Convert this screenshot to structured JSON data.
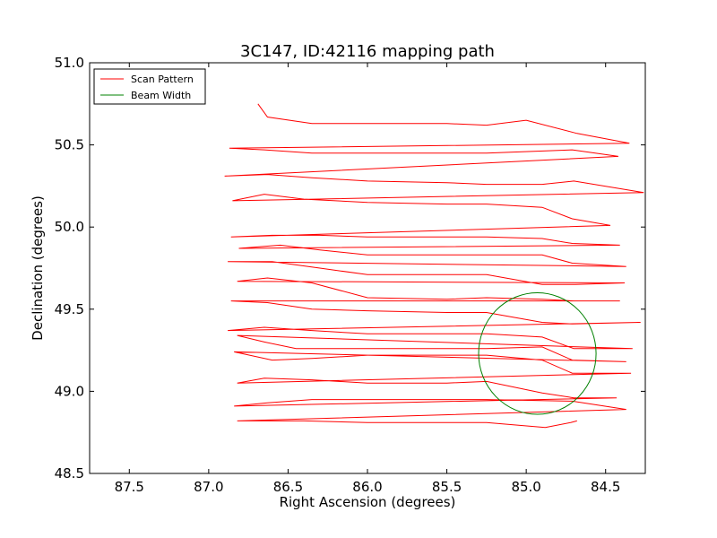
{
  "chart_data": {
    "type": "line",
    "title": "3C147, ID:42116 mapping path",
    "xlabel": "Right Ascension (degrees)",
    "ylabel": "Declination (degrees)",
    "xlim": [
      87.75,
      84.25
    ],
    "ylim": [
      48.5,
      51.0
    ],
    "x_inverted": true,
    "xticks": [
      "87.5",
      "87.0",
      "86.5",
      "86.0",
      "85.5",
      "85.0",
      "84.5"
    ],
    "yticks": [
      "48.5",
      "49.0",
      "49.5",
      "50.0",
      "50.5",
      "51.0"
    ],
    "grid": false,
    "legend_position": "top-left",
    "series": [
      {
        "name": "Scan Pattern",
        "color": "#ff0000",
        "x": [
          84.68,
          84.72,
          84.88,
          85.25,
          85.5,
          86.0,
          86.4,
          86.6,
          86.82,
          84.37,
          84.71,
          85.25,
          85.5,
          86.0,
          86.35,
          86.63,
          86.84,
          84.43,
          84.7,
          84.9,
          85.25,
          85.5,
          86.0,
          86.35,
          86.65,
          86.82,
          84.34,
          84.71,
          84.9,
          85.25,
          85.5,
          86.0,
          86.35,
          86.6,
          86.84,
          84.37,
          84.71,
          84.9,
          85.25,
          85.5,
          86.0,
          86.45,
          86.65,
          86.82,
          84.33,
          84.7,
          84.9,
          85.25,
          85.5,
          86.0,
          86.35,
          86.65,
          86.88,
          84.28,
          84.71,
          84.9,
          85.25,
          85.5,
          86.0,
          86.35,
          86.63,
          86.86,
          84.41,
          84.7,
          84.9,
          85.25,
          85.5,
          86.0,
          86.35,
          86.63,
          86.82,
          84.38,
          84.69,
          84.9,
          85.25,
          85.5,
          86.0,
          86.3,
          86.6,
          86.88,
          84.37,
          84.71,
          84.9,
          85.25,
          85.5,
          86.0,
          86.3,
          86.55,
          86.81,
          84.41,
          84.71,
          84.9,
          85.25,
          85.5,
          86.0,
          86.3,
          86.6,
          86.86,
          84.47,
          84.71,
          84.9,
          85.25,
          85.5,
          86.0,
          86.4,
          86.65,
          86.85,
          84.26,
          84.7,
          84.9,
          85.25,
          85.5,
          86.0,
          86.35,
          86.63,
          86.9,
          84.42,
          84.71,
          85.25,
          85.5,
          86.0,
          86.35,
          86.65,
          86.87,
          84.35,
          84.68,
          85.0,
          85.25,
          85.5,
          86.0,
          86.35,
          86.63,
          86.69
        ],
        "y": [
          48.82,
          48.81,
          48.78,
          48.81,
          48.81,
          48.81,
          48.82,
          48.82,
          48.82,
          48.89,
          48.94,
          48.95,
          48.95,
          48.95,
          48.95,
          48.93,
          48.91,
          48.96,
          48.96,
          48.99,
          49.06,
          49.05,
          49.05,
          49.07,
          49.08,
          49.05,
          49.11,
          49.11,
          49.19,
          49.22,
          49.22,
          49.22,
          49.2,
          49.19,
          49.24,
          49.18,
          49.19,
          49.27,
          49.26,
          49.26,
          49.26,
          49.26,
          49.3,
          49.34,
          49.26,
          49.26,
          49.33,
          49.35,
          49.35,
          49.35,
          49.37,
          49.39,
          49.37,
          49.42,
          49.41,
          49.42,
          49.48,
          49.48,
          49.49,
          49.5,
          49.54,
          49.55,
          49.55,
          49.55,
          49.56,
          49.57,
          49.56,
          49.57,
          49.66,
          49.69,
          49.67,
          49.66,
          49.65,
          49.65,
          49.71,
          49.71,
          49.71,
          49.75,
          49.79,
          49.79,
          49.76,
          49.78,
          49.83,
          49.83,
          49.83,
          49.83,
          49.86,
          49.89,
          49.87,
          49.89,
          49.9,
          49.93,
          49.94,
          49.94,
          49.94,
          49.95,
          49.95,
          49.94,
          50.01,
          50.05,
          50.12,
          50.14,
          50.14,
          50.15,
          50.17,
          50.2,
          50.16,
          50.21,
          50.28,
          50.26,
          50.26,
          50.27,
          50.28,
          50.3,
          50.32,
          50.31,
          50.43,
          50.47,
          50.45,
          50.45,
          50.45,
          50.45,
          50.47,
          50.48,
          50.51,
          50.57,
          50.65,
          50.62,
          50.63,
          50.63,
          50.63,
          50.67,
          50.75
        ]
      },
      {
        "name": "Beam Width",
        "color": "#008000",
        "shape": "circle",
        "center": [
          84.93,
          49.23
        ],
        "radius_x": 0.37,
        "radius_y": 0.37
      }
    ]
  }
}
